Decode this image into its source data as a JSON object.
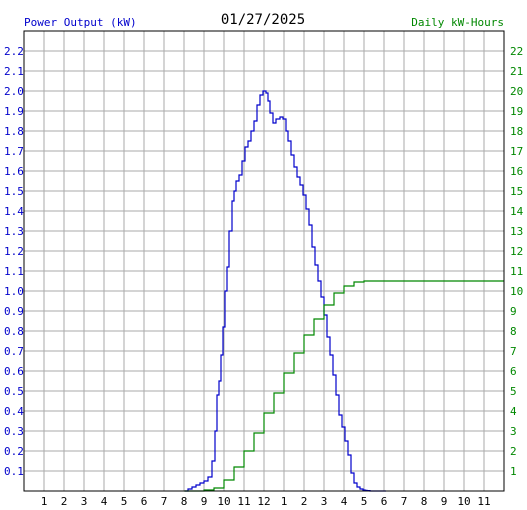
{
  "chart_data": {
    "type": "line",
    "title": "01/27/2025",
    "left_axis_label": "Power Output (kW)",
    "right_axis_label": "Daily kW-Hours",
    "colors": {
      "power": "#0000cc",
      "energy": "#008800",
      "grid": "#aaaaaa",
      "frame": "#000000"
    },
    "grid": true,
    "y_left": {
      "min": 0,
      "max": 2.3,
      "ticks": [
        "0.1",
        "0.2",
        "0.3",
        "0.4",
        "0.5",
        "0.6",
        "0.7",
        "0.8",
        "0.9",
        "1.0",
        "1.1",
        "1.2",
        "1.3",
        "1.4",
        "1.5",
        "1.6",
        "1.7",
        "1.8",
        "1.9",
        "2.0",
        "2.1",
        "2.2"
      ]
    },
    "y_right": {
      "min": 0,
      "max": 23,
      "ticks": [
        "1",
        "2",
        "3",
        "4",
        "5",
        "6",
        "7",
        "8",
        "9",
        "10",
        "11",
        "12",
        "13",
        "14",
        "15",
        "16",
        "17",
        "18",
        "19",
        "20",
        "21",
        "22"
      ]
    },
    "x_axis": {
      "min": 0,
      "max": 24,
      "ticks": [
        "1",
        "2",
        "3",
        "4",
        "5",
        "6",
        "7",
        "8",
        "9",
        "10",
        "11",
        "12",
        "1",
        "2",
        "3",
        "4",
        "5",
        "6",
        "7",
        "8",
        "9",
        "10",
        "11"
      ]
    },
    "series": [
      {
        "key": "power",
        "axis": "left",
        "x": [
          8.05,
          8.2,
          8.4,
          8.6,
          8.8,
          9.0,
          9.2,
          9.4,
          9.55,
          9.65,
          9.75,
          9.85,
          9.95,
          10.05,
          10.15,
          10.25,
          10.4,
          10.5,
          10.6,
          10.75,
          10.9,
          11.05,
          11.2,
          11.35,
          11.5,
          11.65,
          11.8,
          11.95,
          12.1,
          12.2,
          12.3,
          12.45,
          12.6,
          12.8,
          12.95,
          13.1,
          13.2,
          13.35,
          13.5,
          13.65,
          13.8,
          13.95,
          14.1,
          14.25,
          14.4,
          14.55,
          14.7,
          14.85,
          15.0,
          15.15,
          15.3,
          15.45,
          15.6,
          15.75,
          15.9,
          16.05,
          16.2,
          16.35,
          16.5,
          16.65,
          16.8,
          16.95,
          17.05,
          17.15,
          17.3,
          17.5,
          17.7,
          17.9,
          18.1
        ],
        "y": [
          0.0,
          0.01,
          0.02,
          0.03,
          0.04,
          0.05,
          0.07,
          0.15,
          0.3,
          0.48,
          0.55,
          0.68,
          0.82,
          1.0,
          1.12,
          1.3,
          1.45,
          1.5,
          1.55,
          1.58,
          1.65,
          1.72,
          1.75,
          1.8,
          1.85,
          1.93,
          1.98,
          2.0,
          1.99,
          1.95,
          1.89,
          1.84,
          1.86,
          1.87,
          1.86,
          1.8,
          1.75,
          1.68,
          1.62,
          1.57,
          1.53,
          1.48,
          1.41,
          1.33,
          1.22,
          1.13,
          1.05,
          0.97,
          0.88,
          0.77,
          0.68,
          0.58,
          0.48,
          0.38,
          0.32,
          0.25,
          0.18,
          0.09,
          0.04,
          0.02,
          0.01,
          0.005,
          0.003,
          0.002,
          0.0,
          0.0,
          0.0,
          0.0,
          0.0
        ]
      },
      {
        "key": "energy",
        "axis": "right",
        "x": [
          8.0,
          9.0,
          9.5,
          10.0,
          10.5,
          11.0,
          11.5,
          12.0,
          12.5,
          13.0,
          13.5,
          14.0,
          14.5,
          15.0,
          15.5,
          16.0,
          16.5,
          17.0,
          17.5,
          18.0,
          19.0,
          20.0,
          21.0,
          22.0,
          23.0,
          24.0
        ],
        "y": [
          0.0,
          0.05,
          0.15,
          0.55,
          1.2,
          2.0,
          2.9,
          3.9,
          4.9,
          5.9,
          6.9,
          7.8,
          8.6,
          9.3,
          9.9,
          10.25,
          10.45,
          10.5,
          10.5,
          10.5,
          10.5,
          10.5,
          10.5,
          10.5,
          10.5,
          10.5
        ]
      }
    ]
  }
}
